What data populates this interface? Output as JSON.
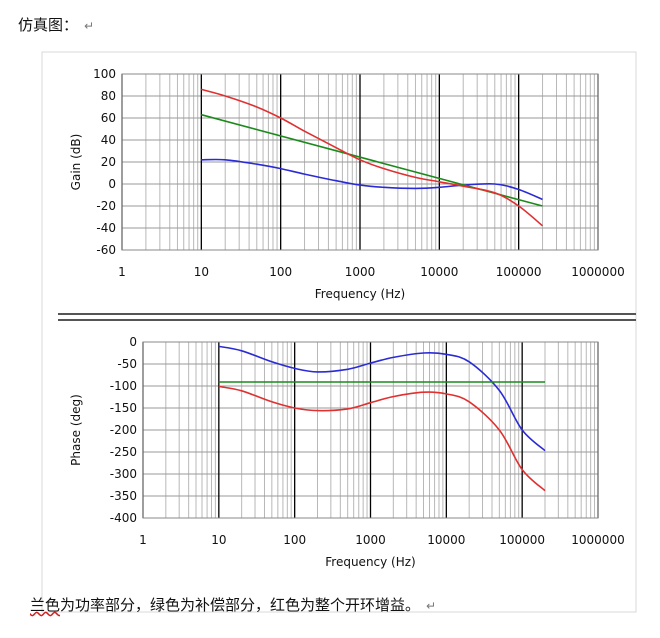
{
  "heading": "仿真图：",
  "return_mark": "↵",
  "footer": {
    "pre": "",
    "underlined": "兰色",
    "rest": "为功率部分，绿色为补偿部分，红色为整个开环增益。"
  },
  "colors": {
    "power": "#2b2bd6",
    "compensation": "#1b8a1b",
    "open_loop": "#e03030",
    "grid": "#b8b8b8",
    "major_grid": "#000000"
  },
  "chart_data": [
    {
      "type": "line",
      "name": "gain",
      "xscale": "log",
      "xlim": [
        1,
        1000000
      ],
      "ylim": [
        -60,
        100
      ],
      "xticks": [
        1,
        10,
        100,
        1000,
        10000,
        100000,
        1000000
      ],
      "xtick_labels": [
        "1",
        "10",
        "100",
        "1000",
        "10000",
        "100000",
        "1000000"
      ],
      "yticks": [
        100,
        80,
        60,
        40,
        20,
        0,
        -20,
        -40,
        -60
      ],
      "xlabel": "Frequency (Hz)",
      "ylabel": "Gain (dB)",
      "series": [
        {
          "name": "power",
          "color": "#2b2bd6",
          "x": [
            10,
            20,
            50,
            100,
            200,
            500,
            1000,
            2000,
            5000,
            10000,
            20000,
            50000,
            100000,
            200000
          ],
          "y": [
            22,
            22,
            18,
            14,
            9,
            3,
            -1,
            -3,
            -4,
            -3,
            -1,
            0,
            -5,
            -14
          ]
        },
        {
          "name": "compensation",
          "color": "#1b8a1b",
          "x": [
            10,
            200000
          ],
          "y": [
            63,
            -20
          ]
        },
        {
          "name": "open_loop",
          "color": "#e03030",
          "x": [
            10,
            20,
            50,
            100,
            200,
            500,
            1000,
            2000,
            5000,
            10000,
            20000,
            50000,
            100000,
            200000
          ],
          "y": [
            86,
            80,
            70,
            60,
            48,
            33,
            22,
            14,
            6,
            2,
            -2,
            -8,
            -20,
            -38
          ]
        }
      ]
    },
    {
      "type": "line",
      "name": "phase",
      "xscale": "log",
      "xlim": [
        1,
        1000000
      ],
      "ylim": [
        -400,
        0
      ],
      "xticks": [
        1,
        10,
        100,
        1000,
        10000,
        100000,
        1000000
      ],
      "xtick_labels": [
        "1",
        "10",
        "100",
        "1000",
        "10000",
        "100000",
        "1000000"
      ],
      "yticks": [
        0,
        -50,
        -100,
        -150,
        -200,
        -250,
        -300,
        -350,
        -400
      ],
      "xlabel": "Frequency (Hz)",
      "ylabel": "Phase (deg)",
      "series": [
        {
          "name": "power",
          "color": "#2b2bd6",
          "x": [
            10,
            20,
            50,
            100,
            200,
            500,
            1000,
            2000,
            5000,
            10000,
            20000,
            50000,
            100000,
            200000
          ],
          "y": [
            -10,
            -20,
            -45,
            -60,
            -68,
            -62,
            -48,
            -35,
            -25,
            -28,
            -45,
            -110,
            -200,
            -247
          ]
        },
        {
          "name": "compensation",
          "color": "#1b8a1b",
          "x": [
            10,
            200000
          ],
          "y": [
            -91,
            -91
          ]
        },
        {
          "name": "open_loop",
          "color": "#e03030",
          "x": [
            10,
            20,
            50,
            100,
            200,
            500,
            1000,
            2000,
            5000,
            10000,
            20000,
            50000,
            100000,
            200000
          ],
          "y": [
            -101,
            -111,
            -136,
            -150,
            -156,
            -152,
            -138,
            -124,
            -114,
            -118,
            -136,
            -200,
            -290,
            -338
          ]
        }
      ]
    }
  ]
}
